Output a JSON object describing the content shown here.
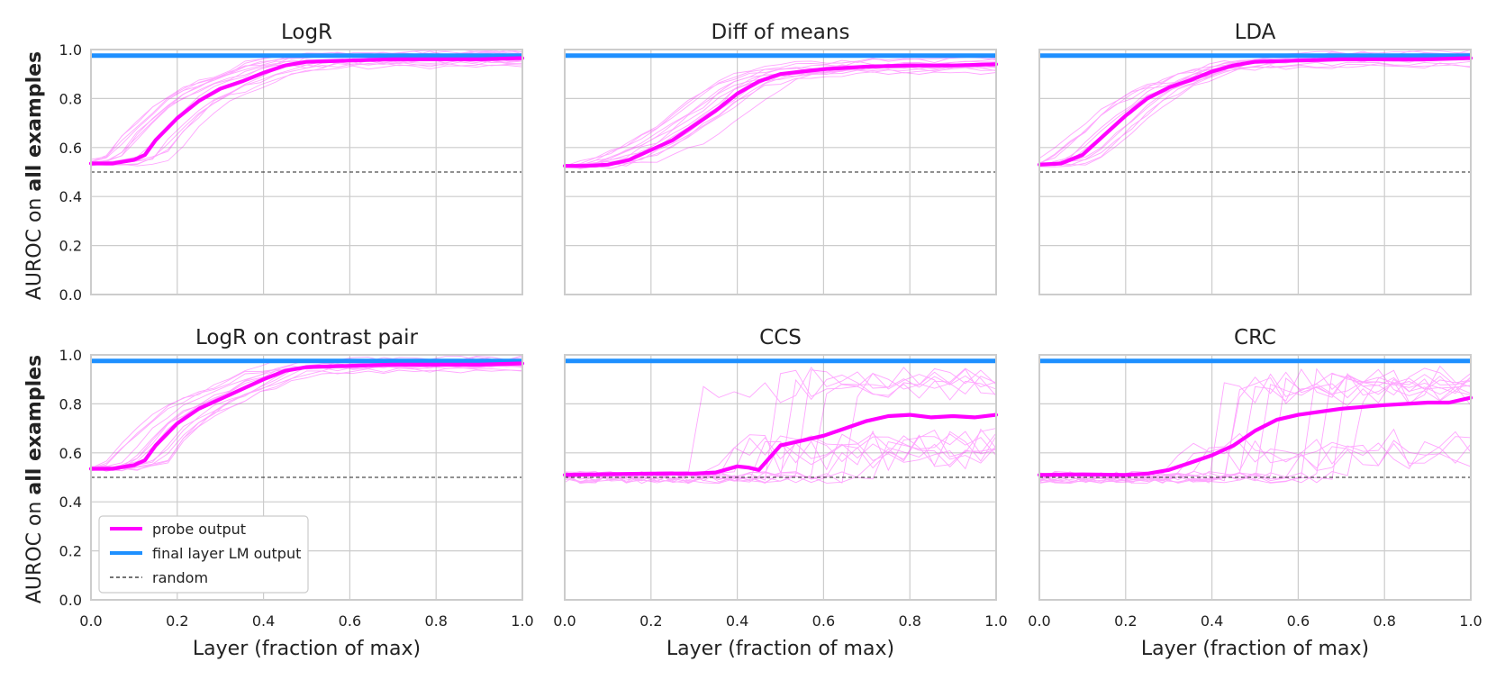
{
  "figure": {
    "ylabel_prefix": "AUROC on ",
    "ylabel_bold": "all examples",
    "xlabel": "Layer (fraction of max)",
    "colors": {
      "probe": "#ff00ff",
      "final_layer": "#1e90ff",
      "random": "#222222",
      "grid": "#cccccc",
      "frame": "#cccccc",
      "faint_opacity_hint": "#ff66ff"
    }
  },
  "legend": {
    "items": [
      {
        "label": "probe output",
        "style": "probe"
      },
      {
        "label": "final layer LM output",
        "style": "final_layer"
      },
      {
        "label": "random",
        "style": "random"
      }
    ]
  },
  "chart_data": [
    {
      "type": "line",
      "title": "LogR",
      "xlabel": "Layer (fraction of max)",
      "ylabel": "AUROC on all examples",
      "xlim": [
        0,
        1
      ],
      "ylim": [
        0,
        1
      ],
      "xticks": [
        "0.0",
        "0.2",
        "0.4",
        "0.6",
        "0.8",
        "1.0"
      ],
      "yticks": [
        "0.0",
        "0.2",
        "0.4",
        "0.6",
        "0.8",
        "1.0"
      ],
      "final_layer_lm_output": 0.975,
      "random": 0.5,
      "faint_lines": "many per-dataset runs",
      "series": [
        {
          "name": "probe output",
          "x": [
            0,
            0.05,
            0.1,
            0.125,
            0.15,
            0.2,
            0.25,
            0.3,
            0.35,
            0.4,
            0.45,
            0.5,
            0.6,
            0.7,
            0.8,
            0.9,
            1.0
          ],
          "values": [
            0.535,
            0.535,
            0.55,
            0.57,
            0.63,
            0.72,
            0.79,
            0.84,
            0.87,
            0.905,
            0.935,
            0.95,
            0.955,
            0.96,
            0.96,
            0.96,
            0.965
          ]
        }
      ]
    },
    {
      "type": "line",
      "title": "Diff of means",
      "xlabel": "Layer (fraction of max)",
      "ylabel": "",
      "xlim": [
        0,
        1
      ],
      "ylim": [
        0,
        1
      ],
      "xticks": [
        "0.0",
        "0.2",
        "0.4",
        "0.6",
        "0.8",
        "1.0"
      ],
      "yticks": [],
      "final_layer_lm_output": 0.975,
      "random": 0.5,
      "series": [
        {
          "name": "probe output",
          "x": [
            0,
            0.05,
            0.1,
            0.15,
            0.2,
            0.25,
            0.3,
            0.35,
            0.4,
            0.45,
            0.5,
            0.6,
            0.7,
            0.8,
            0.9,
            1.0
          ],
          "values": [
            0.525,
            0.525,
            0.53,
            0.55,
            0.59,
            0.63,
            0.69,
            0.75,
            0.82,
            0.87,
            0.9,
            0.92,
            0.93,
            0.935,
            0.935,
            0.94
          ]
        }
      ]
    },
    {
      "type": "line",
      "title": "LDA",
      "xlabel": "Layer (fraction of max)",
      "ylabel": "",
      "xlim": [
        0,
        1
      ],
      "ylim": [
        0,
        1
      ],
      "xticks": [
        "0.0",
        "0.2",
        "0.4",
        "0.6",
        "0.8",
        "1.0"
      ],
      "yticks": [],
      "final_layer_lm_output": 0.975,
      "random": 0.5,
      "series": [
        {
          "name": "probe output",
          "x": [
            0,
            0.05,
            0.1,
            0.15,
            0.2,
            0.25,
            0.3,
            0.35,
            0.4,
            0.45,
            0.5,
            0.6,
            0.7,
            0.8,
            0.9,
            1.0
          ],
          "values": [
            0.53,
            0.535,
            0.57,
            0.65,
            0.73,
            0.8,
            0.845,
            0.875,
            0.91,
            0.935,
            0.95,
            0.955,
            0.96,
            0.96,
            0.96,
            0.965
          ]
        }
      ]
    },
    {
      "type": "line",
      "title": "LogR on contrast pair",
      "xlabel": "Layer (fraction of max)",
      "ylabel": "AUROC on all examples",
      "xlim": [
        0,
        1
      ],
      "ylim": [
        0,
        1
      ],
      "xticks": [
        "0.0",
        "0.2",
        "0.4",
        "0.6",
        "0.8",
        "1.0"
      ],
      "yticks": [
        "0.0",
        "0.2",
        "0.4",
        "0.6",
        "0.8",
        "1.0"
      ],
      "final_layer_lm_output": 0.975,
      "random": 0.5,
      "series": [
        {
          "name": "probe output",
          "x": [
            0,
            0.05,
            0.1,
            0.125,
            0.15,
            0.2,
            0.25,
            0.3,
            0.35,
            0.4,
            0.45,
            0.5,
            0.6,
            0.7,
            0.8,
            0.9,
            1.0
          ],
          "values": [
            0.535,
            0.535,
            0.55,
            0.57,
            0.63,
            0.72,
            0.78,
            0.82,
            0.86,
            0.9,
            0.935,
            0.95,
            0.955,
            0.96,
            0.96,
            0.96,
            0.965
          ]
        }
      ]
    },
    {
      "type": "line",
      "title": "CCS",
      "xlabel": "Layer (fraction of max)",
      "ylabel": "",
      "xlim": [
        0,
        1
      ],
      "ylim": [
        0,
        1
      ],
      "xticks": [
        "0.0",
        "0.2",
        "0.4",
        "0.6",
        "0.8",
        "1.0"
      ],
      "yticks": [],
      "final_layer_lm_output": 0.975,
      "random": 0.5,
      "series": [
        {
          "name": "probe output",
          "x": [
            0,
            0.1,
            0.2,
            0.3,
            0.35,
            0.4,
            0.425,
            0.45,
            0.5,
            0.55,
            0.6,
            0.65,
            0.7,
            0.75,
            0.8,
            0.85,
            0.9,
            0.95,
            1.0
          ],
          "values": [
            0.51,
            0.513,
            0.515,
            0.515,
            0.52,
            0.545,
            0.54,
            0.53,
            0.63,
            0.65,
            0.67,
            0.7,
            0.73,
            0.75,
            0.755,
            0.745,
            0.75,
            0.745,
            0.755
          ]
        }
      ]
    },
    {
      "type": "line",
      "title": "CRC",
      "xlabel": "Layer (fraction of max)",
      "ylabel": "",
      "xlim": [
        0,
        1
      ],
      "ylim": [
        0,
        1
      ],
      "xticks": [
        "0.0",
        "0.2",
        "0.4",
        "0.6",
        "0.8",
        "1.0"
      ],
      "yticks": [],
      "final_layer_lm_output": 0.975,
      "random": 0.5,
      "series": [
        {
          "name": "probe output",
          "x": [
            0,
            0.1,
            0.2,
            0.25,
            0.3,
            0.35,
            0.4,
            0.45,
            0.5,
            0.55,
            0.6,
            0.7,
            0.8,
            0.9,
            0.95,
            1.0
          ],
          "values": [
            0.51,
            0.512,
            0.51,
            0.515,
            0.53,
            0.56,
            0.59,
            0.63,
            0.69,
            0.735,
            0.755,
            0.78,
            0.795,
            0.805,
            0.805,
            0.825
          ]
        }
      ]
    }
  ]
}
